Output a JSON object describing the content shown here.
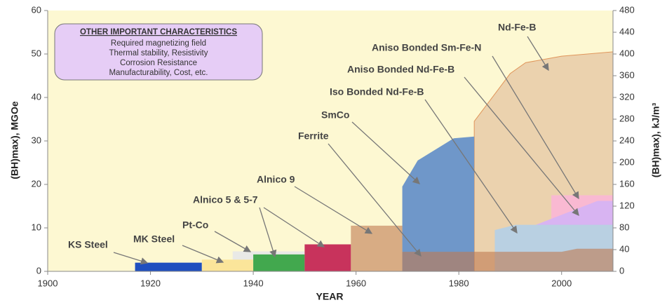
{
  "chart_data": {
    "type": "area",
    "xlabel": "YEAR",
    "ylabel": "(BH)max), MGOe",
    "y2label": "(BH)max), kJ/m³",
    "xlim": [
      1900,
      2010
    ],
    "xticks": [
      1900,
      1920,
      1940,
      1960,
      1980,
      2000
    ],
    "ylim": [
      0,
      60
    ],
    "yticks": [
      0,
      10,
      20,
      30,
      40,
      50,
      60
    ],
    "y2lim": [
      0,
      480
    ],
    "y2ticks": [
      0,
      40,
      80,
      120,
      160,
      200,
      240,
      280,
      320,
      360,
      400,
      440,
      480
    ],
    "background": "#fdf8d2",
    "note": {
      "title": "OTHER IMPORTANT CHARACTERISTICS",
      "lines": [
        "Required magnetizing field",
        "Thermal stability, Resistivity",
        "Corrosion Resistance",
        "Manufacturability, Cost, etc."
      ],
      "color": "#e6cdf6"
    },
    "series": [
      {
        "name": "Pt-Co",
        "color": "#e9e9e6",
        "x": [
          1936,
          1950
        ],
        "values": [
          4.6,
          4.6
        ]
      },
      {
        "name": "KS Steel",
        "color": "#1f4fbf",
        "x": [
          1917,
          1930
        ],
        "values": [
          2,
          2
        ]
      },
      {
        "name": "MK Steel",
        "color": "#fbe59a",
        "x": [
          1930,
          1940
        ],
        "values": [
          2.7,
          2.7
        ]
      },
      {
        "name": "Alnico 5 & 5-7",
        "color": "#42a84e",
        "x": [
          1940,
          1950
        ],
        "values": [
          3.9,
          3.9
        ]
      },
      {
        "name": "Alnico 9",
        "color": "#c8335c",
        "x": [
          1950,
          1959
        ],
        "values": [
          6.2,
          6.2
        ]
      },
      {
        "name": "Nd-Fe-B",
        "color": "#ebd2ae",
        "x": [
          1983,
          1990,
          1993,
          2000,
          2010
        ],
        "values": [
          34.5,
          45.5,
          48,
          49.5,
          50.5
        ]
      },
      {
        "name": "Aniso Bonded Sm-Fe-N",
        "color": "#f9b9d2",
        "x": [
          1998,
          2010
        ],
        "values": [
          17.5,
          17.5
        ]
      },
      {
        "name": "Aniso Bonded Nd-Fe-B",
        "color": "#d8b4f2",
        "x": [
          1995,
          2000,
          2007,
          2010
        ],
        "values": [
          10.7,
          13,
          16.2,
          16.2
        ]
      },
      {
        "name": "Iso Bonded Nd-Fe-B",
        "color": "#b9d0e2",
        "x": [
          1987,
          1991,
          2010
        ],
        "values": [
          9.5,
          10.7,
          10.7
        ]
      },
      {
        "name": "SmCo",
        "color": "#6f97c9",
        "x": [
          1969,
          1972,
          1979,
          1983
        ],
        "values": [
          19.5,
          25.5,
          30.6,
          31
        ]
      },
      {
        "name": "Ferrite",
        "color": "#c07a50",
        "opacity": 0.6,
        "x": [
          1959,
          1969,
          1969,
          2000,
          2003,
          2010
        ],
        "values": [
          10.5,
          10.5,
          4.5,
          4.5,
          5.2,
          5.2
        ]
      }
    ]
  }
}
